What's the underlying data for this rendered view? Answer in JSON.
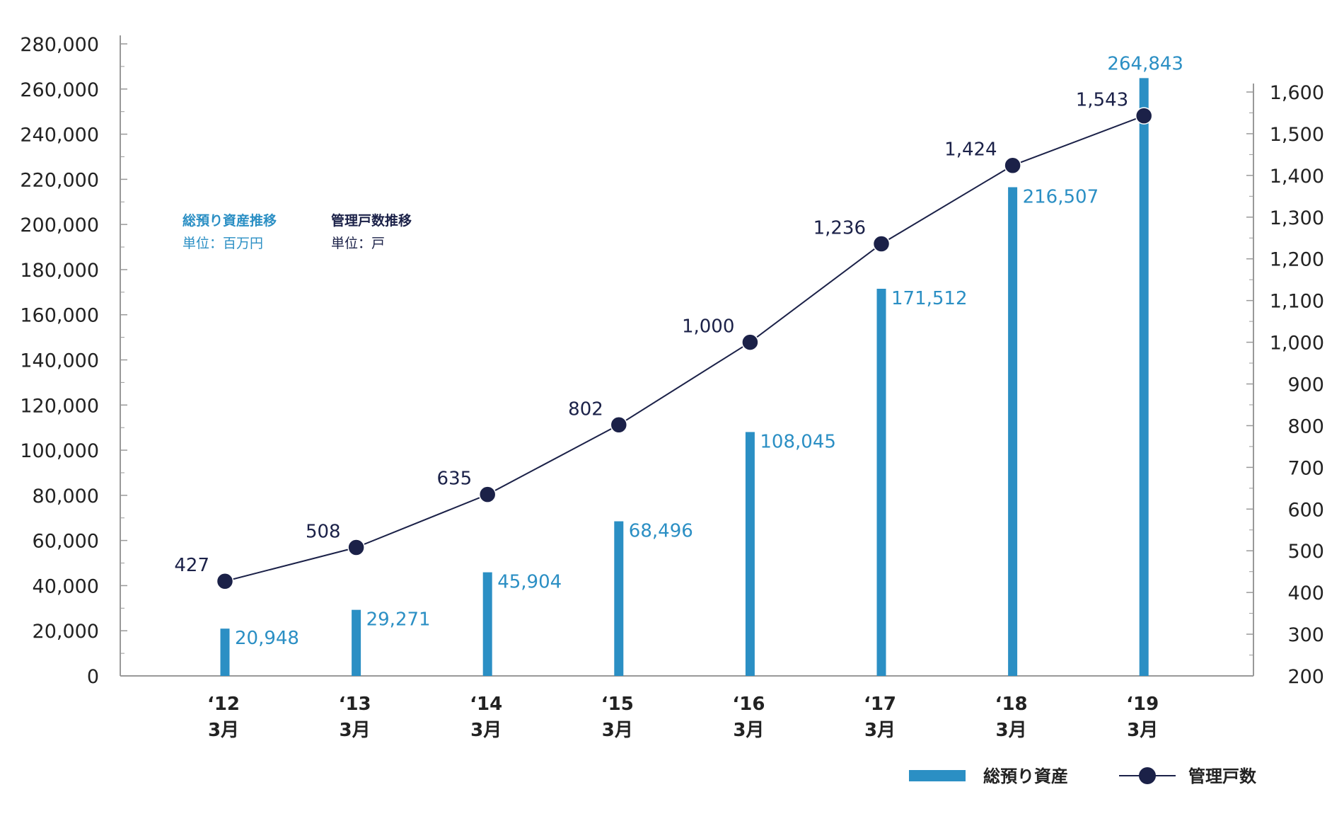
{
  "colors": {
    "bar": "#2b8fc4",
    "line": "#1b2148",
    "axis": "#999999",
    "text": "#222222"
  },
  "notes": {
    "assets_title": "総預り資産推移",
    "assets_unit": "単位：百万円",
    "units_title": "管理戸数推移",
    "units_unit": "単位：戸"
  },
  "legend": {
    "bar_label": "総預り資産",
    "line_label": "管理戸数"
  },
  "chart_data": {
    "type": "bar",
    "categories": [
      {
        "year": "‘12",
        "month": "3月"
      },
      {
        "year": "‘13",
        "month": "3月"
      },
      {
        "year": "‘14",
        "month": "3月"
      },
      {
        "year": "‘15",
        "month": "3月"
      },
      {
        "year": "‘16",
        "month": "3月"
      },
      {
        "year": "‘17",
        "month": "3月"
      },
      {
        "year": "‘18",
        "month": "3月"
      },
      {
        "year": "‘19",
        "month": "3月"
      }
    ],
    "series": [
      {
        "name": "総預り資産",
        "type": "bar",
        "axis": "left",
        "values": [
          20948,
          29271,
          45904,
          68496,
          108045,
          171512,
          216507,
          264843
        ],
        "labels": [
          "20,948",
          "29,271",
          "45,904",
          "68,496",
          "108,045",
          "171,512",
          "216,507",
          "264,843"
        ]
      },
      {
        "name": "管理戸数",
        "type": "line",
        "axis": "right",
        "values": [
          427,
          508,
          635,
          802,
          1000,
          1236,
          1424,
          1543
        ],
        "labels": [
          "427",
          "508",
          "635",
          "802",
          "1,000",
          "1,236",
          "1,424",
          "1,543"
        ]
      }
    ],
    "left_axis": {
      "ylim": [
        0,
        280000
      ],
      "ticks": [
        0,
        20000,
        40000,
        60000,
        80000,
        100000,
        120000,
        140000,
        160000,
        180000,
        200000,
        220000,
        240000,
        260000,
        280000
      ],
      "tick_labels": [
        "0",
        "20,000",
        "40,000",
        "60,000",
        "80,000",
        "100,000",
        "120,000",
        "140,000",
        "160,000",
        "180,000",
        "200,000",
        "220,000",
        "240,000",
        "260,000",
        "280,000"
      ]
    },
    "right_axis": {
      "ylim": [
        200,
        1600
      ],
      "ticks": [
        200,
        300,
        400,
        500,
        600,
        700,
        800,
        900,
        1000,
        1100,
        1200,
        1300,
        1400,
        1500,
        1600
      ],
      "tick_labels": [
        "200",
        "300",
        "400",
        "500",
        "600",
        "700",
        "800",
        "900",
        "1,000",
        "1,100",
        "1,200",
        "1,300",
        "1,400",
        "1,500",
        "1,600"
      ]
    },
    "grid": false,
    "legend_position": "bottom-right"
  }
}
